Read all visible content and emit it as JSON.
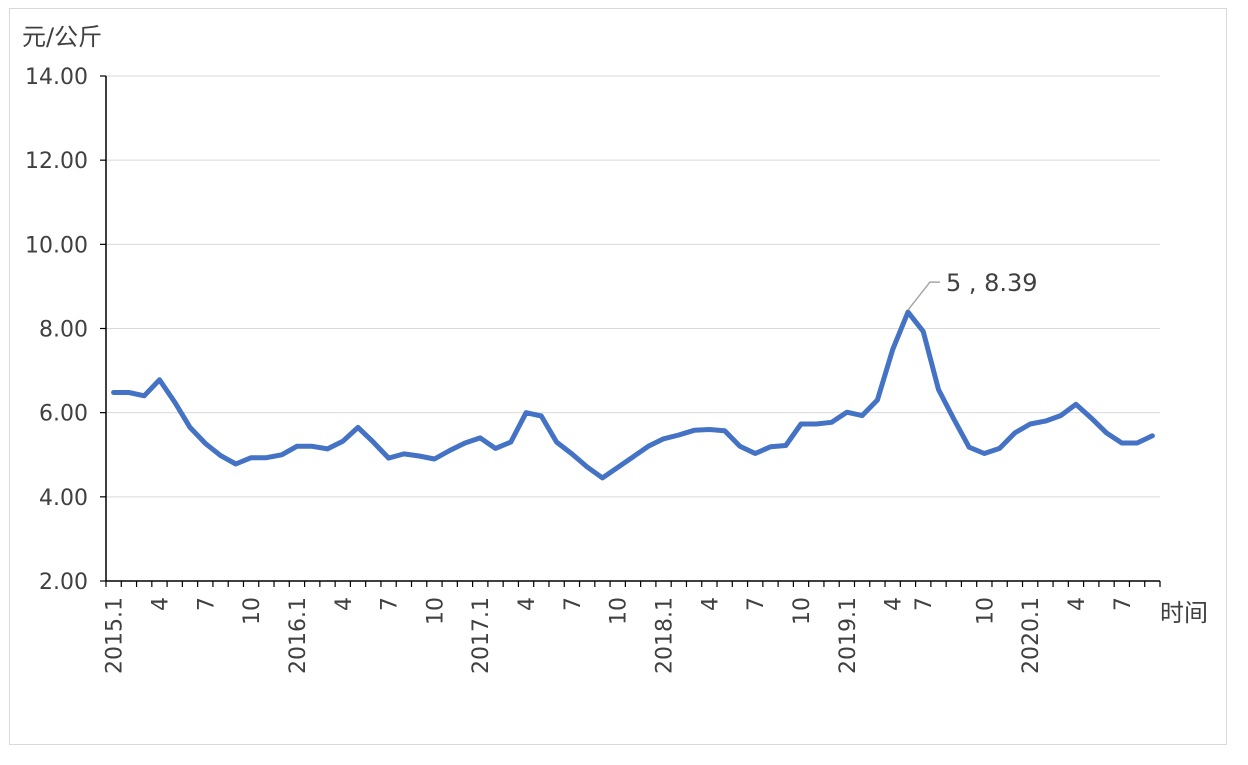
{
  "chart_data": {
    "type": "line",
    "title": "",
    "ylabel": "元/公斤",
    "xlabel": "时间",
    "ylim": [
      2,
      14
    ],
    "yticks": [
      "2.00",
      "4.00",
      "6.00",
      "8.00",
      "10.00",
      "12.00",
      "14.00"
    ],
    "grid": true,
    "line_color": "#4472C4",
    "x_tick_labels": [
      {
        "i": 0,
        "label": "2015.1"
      },
      {
        "i": 3,
        "label": "4"
      },
      {
        "i": 6,
        "label": "7"
      },
      {
        "i": 9,
        "label": "10"
      },
      {
        "i": 12,
        "label": "2016.1"
      },
      {
        "i": 15,
        "label": "4"
      },
      {
        "i": 18,
        "label": "7"
      },
      {
        "i": 21,
        "label": "10"
      },
      {
        "i": 24,
        "label": "2017.1"
      },
      {
        "i": 27,
        "label": "4"
      },
      {
        "i": 30,
        "label": "7"
      },
      {
        "i": 33,
        "label": "10"
      },
      {
        "i": 36,
        "label": "2018.1"
      },
      {
        "i": 39,
        "label": "4"
      },
      {
        "i": 42,
        "label": "7"
      },
      {
        "i": 45,
        "label": "10"
      },
      {
        "i": 48,
        "label": "2019.1"
      },
      {
        "i": 51,
        "label": "4"
      },
      {
        "i": 53,
        "label": "7"
      },
      {
        "i": 57,
        "label": "10"
      },
      {
        "i": 60,
        "label": "2020.1"
      },
      {
        "i": 63,
        "label": "4"
      },
      {
        "i": 66,
        "label": "7"
      }
    ],
    "series": [
      {
        "values": [
          6.48,
          6.48,
          6.4,
          6.78,
          6.25,
          5.65,
          5.27,
          4.98,
          4.78,
          4.93,
          4.93,
          5.0,
          5.2,
          5.2,
          5.14,
          5.32,
          5.65,
          5.3,
          4.92,
          5.02,
          4.97,
          4.9,
          5.1,
          5.28,
          5.4,
          5.15,
          5.3,
          6.0,
          5.92,
          5.3,
          5.02,
          4.71,
          4.45,
          4.7,
          4.95,
          5.2,
          5.38,
          5.47,
          5.58,
          5.6,
          5.57,
          5.2,
          5.03,
          5.19,
          5.22,
          5.73,
          5.73,
          5.77,
          6.01,
          5.93,
          6.3,
          7.5,
          8.39,
          7.93,
          6.55,
          5.85,
          5.18,
          5.03,
          5.15,
          5.52,
          5.73,
          5.8,
          5.93,
          6.2,
          5.87,
          5.52,
          5.28,
          5.28,
          5.45
        ]
      }
    ],
    "annotation": {
      "point_index": 52,
      "label": "5 , 8.39"
    }
  }
}
